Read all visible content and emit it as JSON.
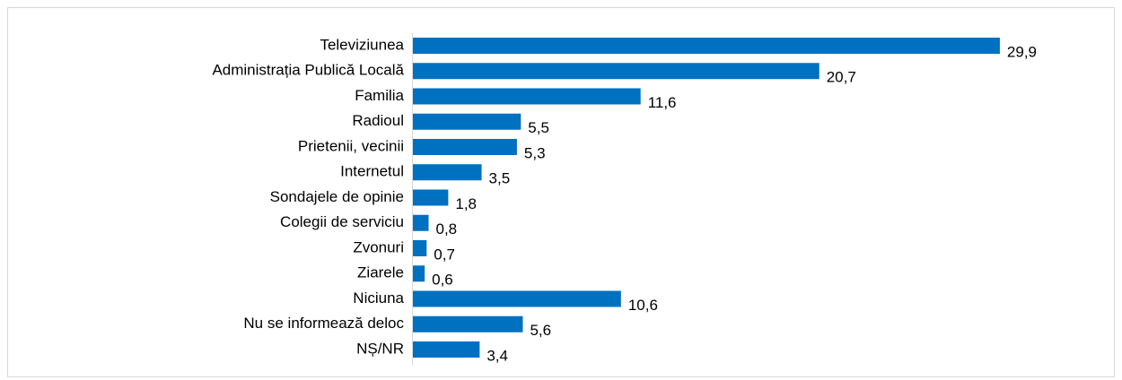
{
  "chart_data": {
    "type": "barh",
    "categories": [
      "Televiziunea",
      "Administrația Publică Locală",
      "Familia",
      "Radioul",
      "Prietenii, vecinii",
      "Internetul",
      "Sondajele de opinie",
      "Colegii de serviciu",
      "Zvonuri",
      "Ziarele",
      "Niciuna",
      "Nu se informează deloc",
      "NȘ/NR"
    ],
    "values": [
      29.9,
      20.7,
      11.6,
      5.5,
      5.3,
      3.5,
      1.8,
      0.8,
      0.7,
      0.6,
      10.6,
      5.6,
      3.4
    ],
    "value_labels": [
      "29,9",
      "20,7",
      "11,6",
      "5,5",
      "5,3",
      "3,5",
      "1,8",
      "0,8",
      "0,7",
      "0,6",
      "10,6",
      "5,6",
      "3,4"
    ],
    "color": "#0070c0"
  }
}
